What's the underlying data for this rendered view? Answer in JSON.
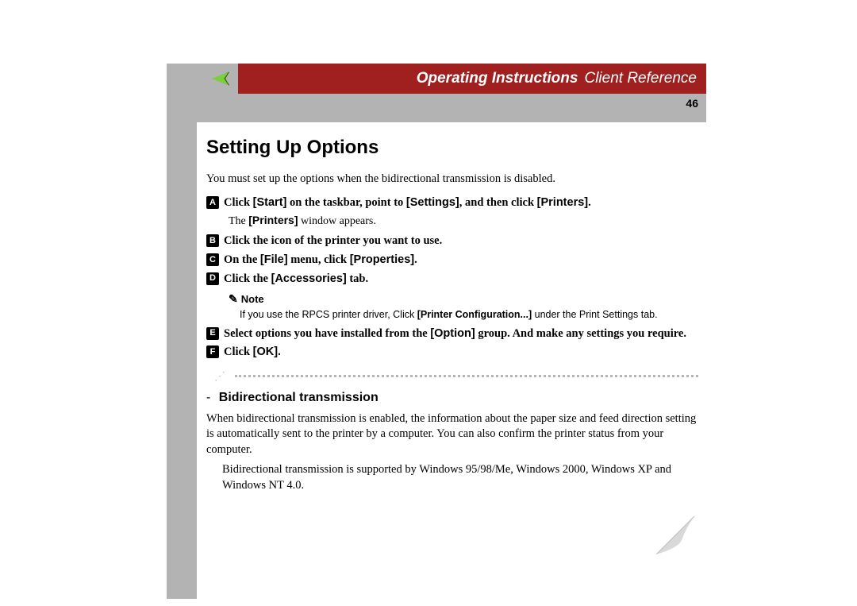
{
  "header": {
    "title_bold": "Operating Instructions",
    "title_light": "Client Reference",
    "page_number": "46",
    "colors": {
      "bar_bg": "#b3b3b3",
      "red_bg": "#a02020",
      "text": "#ffffff"
    }
  },
  "nav": {
    "back_icon_name": "back-arrow-icon",
    "back_fill": "#7bd13a",
    "back_shadow": "#2f6f00"
  },
  "section": {
    "title": "Setting Up Options",
    "intro": "You must set up the options when the bidirectional transmission is disabled.",
    "steps": [
      {
        "badge": "A",
        "segments": [
          {
            "t": "Click ",
            "b": false
          },
          {
            "t": "[Start]",
            "b": true,
            "sans": true
          },
          {
            "t": " on the taskbar, point to ",
            "b": false
          },
          {
            "t": "[Settings]",
            "b": true,
            "sans": true
          },
          {
            "t": ", and then click ",
            "b": false
          },
          {
            "t": "[Printers]",
            "b": true,
            "sans": true
          },
          {
            "t": ".",
            "b": false
          }
        ],
        "sub_segments": [
          {
            "t": "The ",
            "b": false
          },
          {
            "t": "[Printers]",
            "b": true,
            "sans": true
          },
          {
            "t": " window appears.",
            "b": false
          }
        ]
      },
      {
        "badge": "B",
        "segments": [
          {
            "t": "Click the icon of the printer you want to use.",
            "b": false
          }
        ]
      },
      {
        "badge": "C",
        "segments": [
          {
            "t": "On the ",
            "b": false
          },
          {
            "t": "[File]",
            "b": true,
            "sans": true
          },
          {
            "t": " menu, click ",
            "b": false
          },
          {
            "t": "[Properties]",
            "b": true,
            "sans": true
          },
          {
            "t": ".",
            "b": false
          }
        ]
      },
      {
        "badge": "D",
        "segments": [
          {
            "t": "Click the ",
            "b": false
          },
          {
            "t": "[Accessories]",
            "b": true,
            "sans": true
          },
          {
            "t": " tab.",
            "b": false
          }
        ],
        "note": {
          "label": "Note",
          "body_segments": [
            {
              "t": "If you use the RPCS printer driver, Click ",
              "b": false
            },
            {
              "t": "[Printer Configuration...]",
              "b": true
            },
            {
              "t": " under the Print Settings tab.",
              "b": false
            }
          ]
        }
      },
      {
        "badge": "E",
        "segments": [
          {
            "t": "Select options you have installed from the ",
            "b": false
          },
          {
            "t": "[Option]",
            "b": true,
            "sans": true
          },
          {
            "t": " group. And make any settings you require.",
            "b": false
          }
        ]
      },
      {
        "badge": "F",
        "segments": [
          {
            "t": "Click ",
            "b": false
          },
          {
            "t": "[OK]",
            "b": true,
            "sans": true
          },
          {
            "t": ".",
            "b": false
          }
        ]
      }
    ]
  },
  "subsection": {
    "dash": "-",
    "title": "Bidirectional transmission",
    "para1": "When bidirectional transmission is enabled, the information about the paper size and feed direction setting is automatically sent to the printer by a computer. You can also confirm the printer status from your computer.",
    "para2": "Bidirectional transmission is supported by Windows 95/98/Me, Windows 2000, Windows XP and Windows NT 4.0."
  },
  "page_curl": {
    "fill": "#d9d9d9",
    "shadow": "#bfbfbf"
  }
}
